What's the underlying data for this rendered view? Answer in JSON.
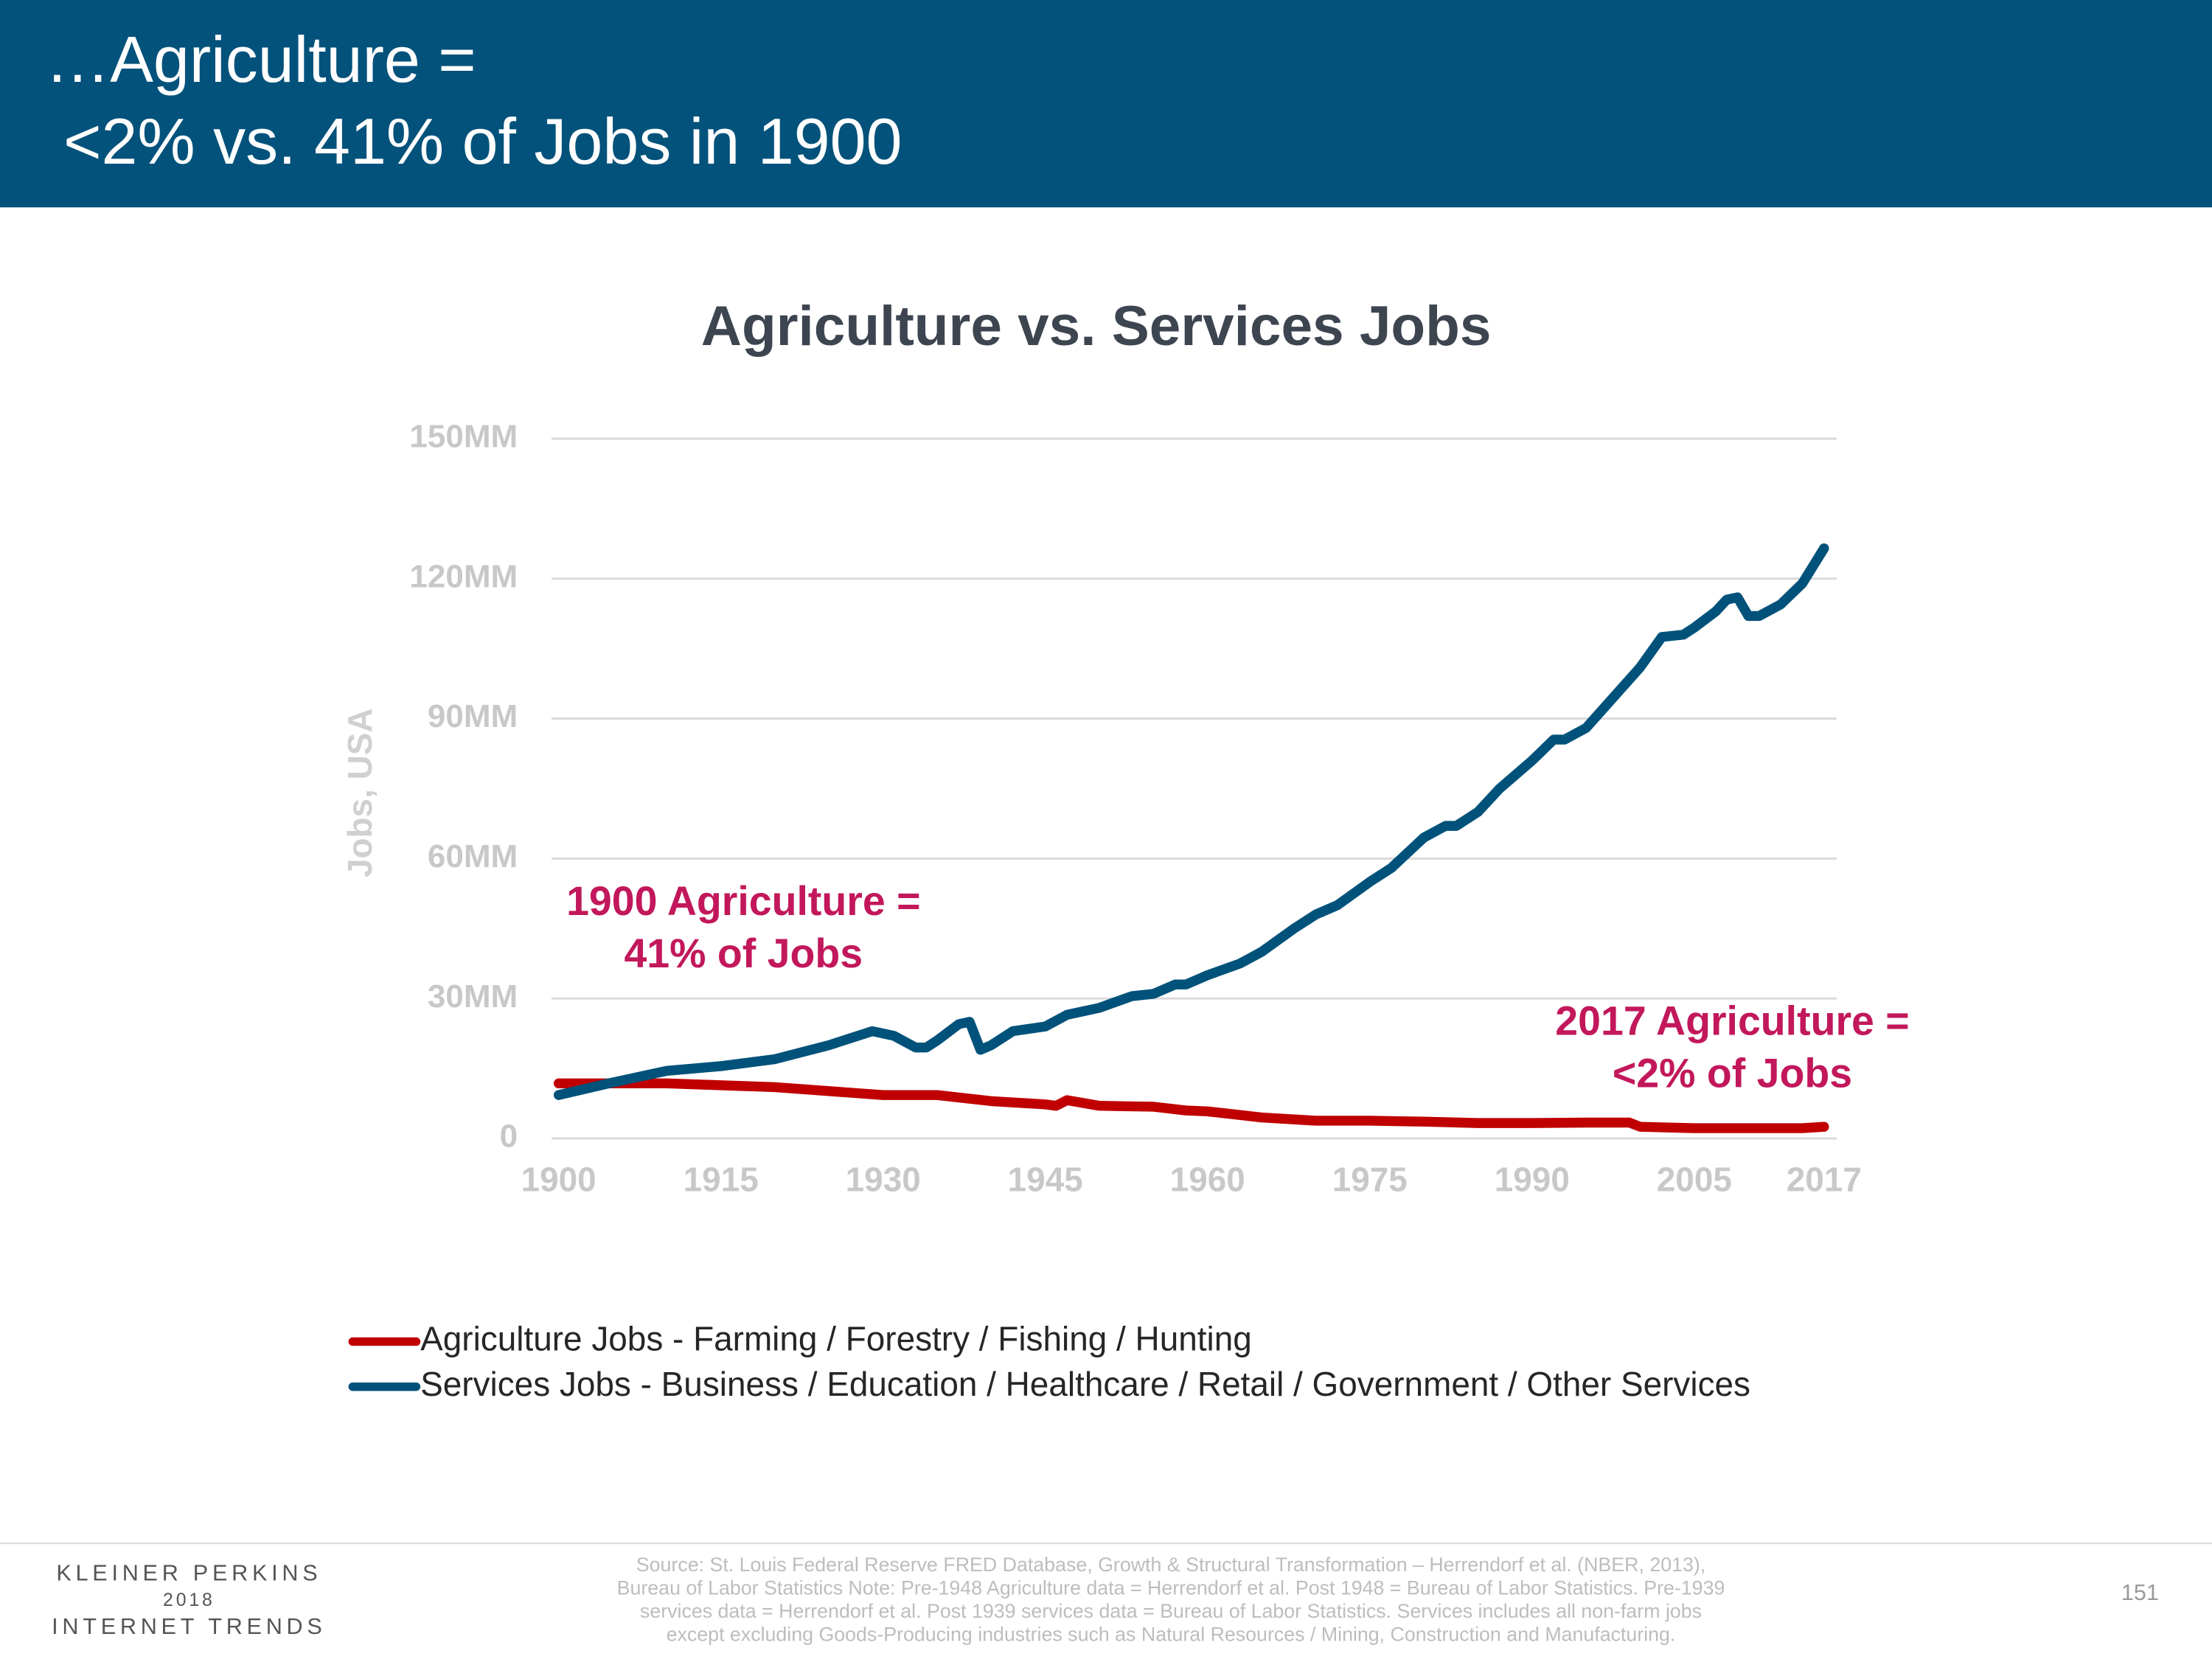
{
  "header": {
    "lines": [
      "…Agriculture =",
      "<2% vs. 41% of Jobs in 1900"
    ]
  },
  "chart_data": {
    "type": "line",
    "title": "Agriculture vs. Services Jobs",
    "y_label": "Jobs, USA",
    "xlim": [
      1900,
      2017
    ],
    "xticks": [
      1900,
      1915,
      1930,
      1945,
      1960,
      1975,
      1990,
      2005,
      2017
    ],
    "ylim": [
      0,
      150
    ],
    "yticks": [
      0,
      {
        "value": 30,
        "label": "30MM"
      },
      {
        "value": 60,
        "label": "60MM"
      },
      {
        "value": 90,
        "label": "90MM"
      },
      {
        "value": 120,
        "label": "120MM"
      },
      {
        "value": 150,
        "label": "150MM"
      }
    ],
    "grid": true,
    "legend": "bottom",
    "series": [
      {
        "name": "Agriculture Jobs - Farming / Forestry / Fishing / Hunting",
        "color": "#c00000",
        "x": [
          1900,
          1910,
          1920,
          1930,
          1935,
          1940,
          1945,
          1946,
          1947,
          1950,
          1955,
          1958,
          1960,
          1965,
          1970,
          1975,
          1980,
          1985,
          1990,
          1995,
          1999,
          2000,
          2005,
          2010,
          2015,
          2017
        ],
        "values": [
          11.8,
          11.8,
          11,
          9.3,
          9.3,
          8,
          7.3,
          7,
          8.2,
          7,
          6.8,
          6,
          5.8,
          4.5,
          3.8,
          3.8,
          3.6,
          3.3,
          3.3,
          3.4,
          3.4,
          2.5,
          2.2,
          2.2,
          2.2,
          2.5
        ]
      },
      {
        "name": "Services Jobs - Business / Education / Healthcare / Retail / Government / Other Services",
        "color": "#00527a",
        "x": [
          1900,
          1905,
          1910,
          1915,
          1920,
          1925,
          1929,
          1931,
          1933,
          1934,
          1935,
          1937,
          1938,
          1939,
          1940,
          1942,
          1945,
          1947,
          1950,
          1953,
          1955,
          1957,
          1958,
          1960,
          1963,
          1965,
          1968,
          1970,
          1972,
          1975,
          1977,
          1980,
          1982,
          1983,
          1985,
          1987,
          1990,
          1992,
          1993,
          1995,
          2000,
          2002,
          2004,
          2005,
          2007,
          2008,
          2009,
          2010,
          2011,
          2013,
          2015,
          2017
        ],
        "values": [
          9.3,
          12,
          14.5,
          15.5,
          17,
          20,
          23,
          22,
          19.5,
          19.5,
          21,
          24.5,
          25,
          19,
          20,
          23,
          24,
          26.5,
          28,
          30.5,
          31,
          33,
          33,
          35,
          37.5,
          40,
          45,
          48,
          50,
          55,
          58,
          64.5,
          67,
          67,
          70,
          75,
          81,
          85.5,
          85.5,
          88,
          101,
          107.5,
          108,
          109.5,
          113,
          115.5,
          116,
          112,
          112,
          114.5,
          119,
          126.5
        ]
      }
    ],
    "annotations": [
      [
        "1900 Agriculture =",
        "41% of Jobs"
      ],
      [
        "2017 Agriculture =",
        "<2% of Jobs"
      ]
    ]
  },
  "footer": {
    "logo": [
      "KLEINER PERKINS",
      "2018",
      "INTERNET TRENDS"
    ],
    "source": [
      "Source: St. Louis Federal Reserve FRED Database, Growth & Structural Transformation – Herrendorf et al. (NBER, 2013),",
      "Bureau of Labor Statistics Note: Pre-1948 Agriculture data = Herrendorf et al. Post 1948 = Bureau of Labor Statistics. Pre-1939",
      "services data = Herrendorf et al. Post 1939 services data = Bureau of Labor Statistics.  Services includes all non-farm jobs",
      "except excluding Goods-Producing industries such as Natural Resources / Mining, Construction and Manufacturing."
    ],
    "page": "151"
  }
}
